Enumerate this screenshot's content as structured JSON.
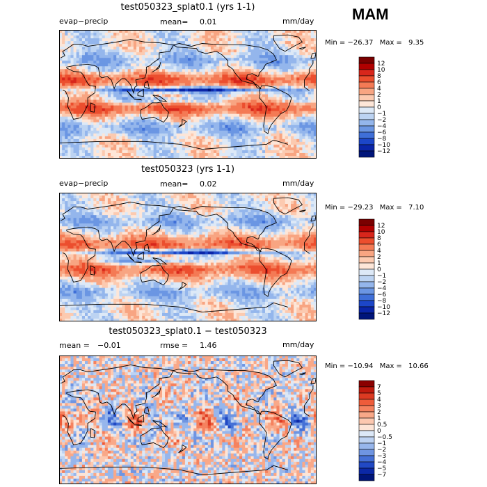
{
  "season": "MAM",
  "chart_data": [
    {
      "type": "heatmap",
      "title": "test050323_splat0.1 (yrs 1-1)",
      "left_label": "evap−precip",
      "stat1_label": "mean=",
      "stat1_value": "0.01",
      "stat2_label": "",
      "stat2_value": "",
      "units": "mm/day",
      "min_label": "Min = ",
      "min_value": "−26.37",
      "max_label": "Max = ",
      "max_value": "9.35",
      "colorbar_levels": [
        "12",
        "10",
        "8",
        "6",
        "4",
        "2",
        "1",
        "0",
        "−1",
        "−2",
        "−4",
        "−6",
        "−8",
        "−10",
        "−12"
      ],
      "colorbar_colors": [
        "#7a0000",
        "#b00000",
        "#d8261b",
        "#ec4e2e",
        "#f47a55",
        "#f8a582",
        "#fccab0",
        "#fde6d8",
        "#dde9f7",
        "#bcd3f2",
        "#94b6ec",
        "#6b96e3",
        "#3f6fd8",
        "#1c46c8",
        "#0a25a8",
        "#00157a"
      ],
      "pattern": "a",
      "xrange": [
        0,
        360
      ],
      "yrange": [
        -90,
        90
      ]
    },
    {
      "type": "heatmap",
      "title": "test050323 (yrs 1-1)",
      "left_label": "evap−precip",
      "stat1_label": "mean=",
      "stat1_value": "0.02",
      "stat2_label": "",
      "stat2_value": "",
      "units": "mm/day",
      "min_label": "Min = ",
      "min_value": "−29.23",
      "max_label": "Max = ",
      "max_value": "7.10",
      "colorbar_levels": [
        "12",
        "10",
        "8",
        "6",
        "4",
        "2",
        "1",
        "0",
        "−1",
        "−2",
        "−4",
        "−6",
        "−8",
        "−10",
        "−12"
      ],
      "colorbar_colors": [
        "#7a0000",
        "#b00000",
        "#d8261b",
        "#ec4e2e",
        "#f47a55",
        "#f8a582",
        "#fccab0",
        "#fde6d8",
        "#dde9f7",
        "#bcd3f2",
        "#94b6ec",
        "#6b96e3",
        "#3f6fd8",
        "#1c46c8",
        "#0a25a8",
        "#00157a"
      ],
      "pattern": "b",
      "xrange": [
        0,
        360
      ],
      "yrange": [
        -90,
        90
      ]
    },
    {
      "type": "heatmap",
      "title": "test050323_splat0.1 − test050323",
      "left_label": "",
      "stat1_label": "mean =",
      "stat1_value": "−0.01",
      "stat2_label": "rmse =",
      "stat2_value": "1.46",
      "units": "mm/day",
      "min_label": "Min = ",
      "min_value": "−10.94",
      "max_label": "Max = ",
      "max_value": "10.66",
      "colorbar_levels": [
        "7",
        "5",
        "4",
        "3",
        "2",
        "1",
        "0.5",
        "0",
        "−0.5",
        "−1",
        "−2",
        "−3",
        "−4",
        "−5",
        "−7"
      ],
      "colorbar_colors": [
        "#8a0000",
        "#c01a0e",
        "#dc3a22",
        "#ee5c3a",
        "#f5825f",
        "#f9a888",
        "#fcc8b0",
        "#fde4d6",
        "#dce8f7",
        "#bdd2f2",
        "#97b6ec",
        "#6f95e2",
        "#4570d6",
        "#2149c4",
        "#0b28a6",
        "#001579"
      ],
      "pattern": "c",
      "xrange": [
        0,
        360
      ],
      "yrange": [
        -90,
        90
      ]
    }
  ]
}
